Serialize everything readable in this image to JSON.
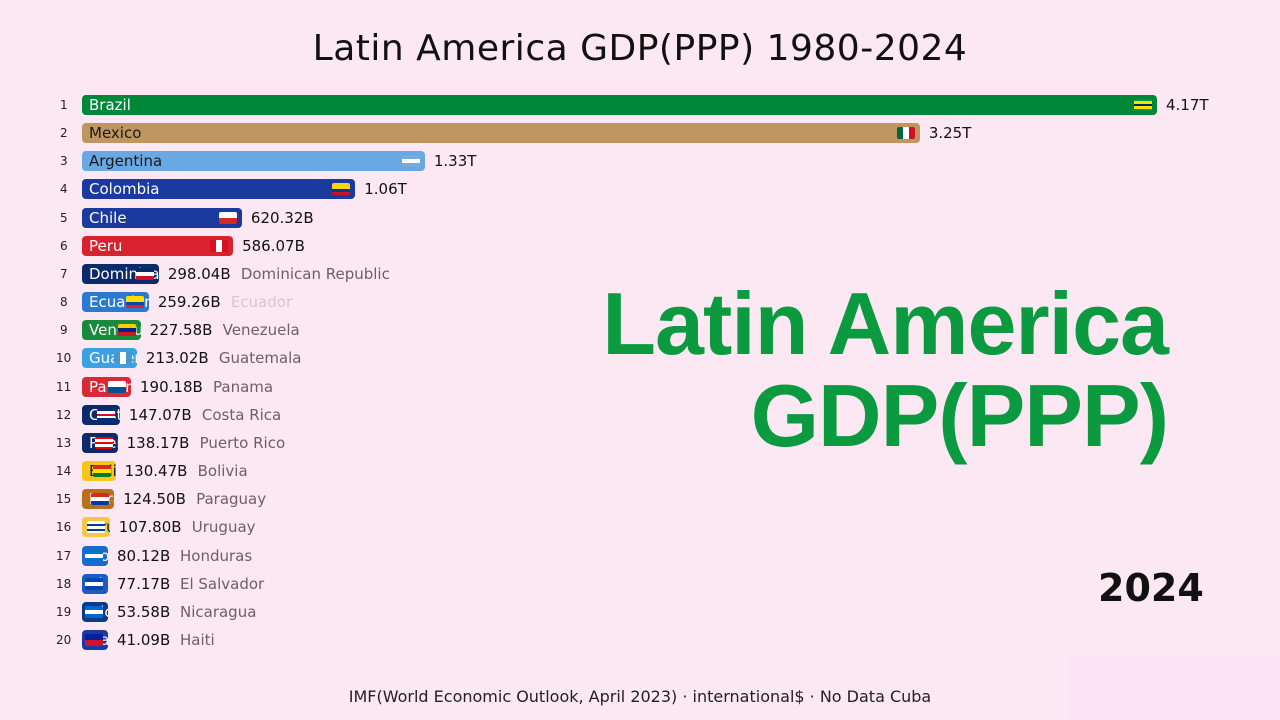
{
  "title": "Latin America GDP(PPP) 1980-2024",
  "overlay": {
    "line1": "Latin America",
    "line2": "GDP(PPP)"
  },
  "year": "2024",
  "source": "IMF(World Economic Outlook, April 2023) · international$ · No Data Cuba",
  "chart_data": {
    "type": "bar",
    "orientation": "horizontal",
    "unit": "billion international$",
    "rows": [
      {
        "rank": 1,
        "country": "Brazil",
        "value": 4170,
        "value_label": "4.17T",
        "color": "#00873a",
        "label_color": "#ffffff",
        "flag": [
          "#009c3b",
          "#ffdf00",
          "#002776",
          "#ffdf00",
          "#009c3b"
        ]
      },
      {
        "rank": 2,
        "country": "Mexico",
        "value": 3250,
        "value_label": "3.25T",
        "color": "#bf9660",
        "label_color": "#1a1a1a",
        "flag": [
          "#006847",
          "#ffffff",
          "#ce1126"
        ],
        "vertical": true
      },
      {
        "rank": 3,
        "country": "Argentina",
        "value": 1330,
        "value_label": "1.33T",
        "color": "#6aa8e4",
        "label_color": "#1a1a1a",
        "flag": [
          "#74acdf",
          "#ffffff",
          "#74acdf"
        ]
      },
      {
        "rank": 4,
        "country": "Colombia",
        "value": 1060,
        "value_label": "1.06T",
        "color": "#1a3aa0",
        "label_color": "#ffffff",
        "flag": [
          "#fcd116",
          "#fcd116",
          "#003893",
          "#ce1126"
        ]
      },
      {
        "rank": 5,
        "country": "Chile",
        "value": 620.32,
        "value_label": "620.32B",
        "color": "#1a3aa0",
        "label_color": "#ffffff",
        "flag": [
          "#ffffff",
          "#d52b1e"
        ]
      },
      {
        "rank": 6,
        "country": "Peru",
        "value": 586.07,
        "value_label": "586.07B",
        "color": "#d8222e",
        "label_color": "#ffffff",
        "flag": [
          "#d91023",
          "#ffffff",
          "#d91023"
        ],
        "vertical": true
      },
      {
        "rank": 7,
        "country": "Dominican Republic",
        "value": 298.04,
        "value_label": "298.04B",
        "color": "#0b2a6b",
        "label_color": "#ffffff",
        "flag": [
          "#002d62",
          "#ffffff",
          "#ce1126"
        ]
      },
      {
        "rank": 8,
        "country": "Ecuador",
        "value": 259.26,
        "value_label": "259.26B",
        "color": "#2a7ad2",
        "label_color": "#ffffff",
        "flag": [
          "#ffdd00",
          "#ffdd00",
          "#034ea2",
          "#ed1c24"
        ],
        "faded": true
      },
      {
        "rank": 9,
        "country": "Venezuela",
        "value": 227.58,
        "value_label": "227.58B",
        "color": "#178a3c",
        "label_color": "#ffffff",
        "flag": [
          "#ffcc00",
          "#00247d",
          "#cf142b"
        ]
      },
      {
        "rank": 10,
        "country": "Guatemala",
        "value": 213.02,
        "value_label": "213.02B",
        "color": "#3aa2e2",
        "label_color": "#ffffff",
        "flag": [
          "#4997d0",
          "#ffffff",
          "#4997d0"
        ],
        "vertical": true
      },
      {
        "rank": 11,
        "country": "Panama",
        "value": 190.18,
        "value_label": "190.18B",
        "color": "#d62a36",
        "label_color": "#ffffff",
        "flag": [
          "#ffffff",
          "#005293"
        ]
      },
      {
        "rank": 12,
        "country": "Costa Rica",
        "value": 147.07,
        "value_label": "147.07B",
        "color": "#0b2a6b",
        "label_color": "#ffffff",
        "flag": [
          "#002b7f",
          "#ffffff",
          "#ce1126",
          "#ffffff",
          "#002b7f"
        ]
      },
      {
        "rank": 13,
        "country": "Puerto Rico",
        "value": 138.17,
        "value_label": "138.17B",
        "color": "#0b2a6b",
        "label_color": "#ffffff",
        "flag": [
          "#ed0000",
          "#ffffff",
          "#ed0000",
          "#ffffff",
          "#ed0000"
        ]
      },
      {
        "rank": 14,
        "country": "Bolivia",
        "value": 130.47,
        "value_label": "130.47B",
        "color": "#f5c518",
        "label_color": "#1a1a1a",
        "flag": [
          "#d52b1e",
          "#f9e300",
          "#007934"
        ]
      },
      {
        "rank": 15,
        "country": "Paraguay",
        "value": 124.5,
        "value_label": "124.50B",
        "color": "#b8701e",
        "label_color": "#ffffff",
        "flag": [
          "#d52b1e",
          "#ffffff",
          "#0038a8"
        ]
      },
      {
        "rank": 16,
        "country": "Uruguay",
        "value": 107.8,
        "value_label": "107.80B",
        "color": "#f5c842",
        "label_color": "#1a1a1a",
        "flag": [
          "#ffffff",
          "#0038a8",
          "#ffffff",
          "#0038a8",
          "#ffffff"
        ]
      },
      {
        "rank": 17,
        "country": "Honduras",
        "value": 80.12,
        "value_label": "80.12B",
        "color": "#1c6ad0",
        "label_color": "#ffffff",
        "flag": [
          "#0073cf",
          "#ffffff",
          "#0073cf"
        ]
      },
      {
        "rank": 18,
        "country": "El Salvador",
        "value": 77.17,
        "value_label": "77.17B",
        "color": "#1c5cc2",
        "label_color": "#ffffff",
        "flag": [
          "#0047ab",
          "#ffffff",
          "#0047ab"
        ]
      },
      {
        "rank": 19,
        "country": "Nicaragua",
        "value": 53.58,
        "value_label": "53.58B",
        "color": "#0c3a8a",
        "label_color": "#ffffff",
        "flag": [
          "#0067c6",
          "#ffffff",
          "#0067c6"
        ]
      },
      {
        "rank": 20,
        "country": "Haiti",
        "value": 41.09,
        "value_label": "41.09B",
        "color": "#1a3aa0",
        "label_color": "#ffffff",
        "flag": [
          "#00209f",
          "#d21034"
        ]
      }
    ]
  }
}
